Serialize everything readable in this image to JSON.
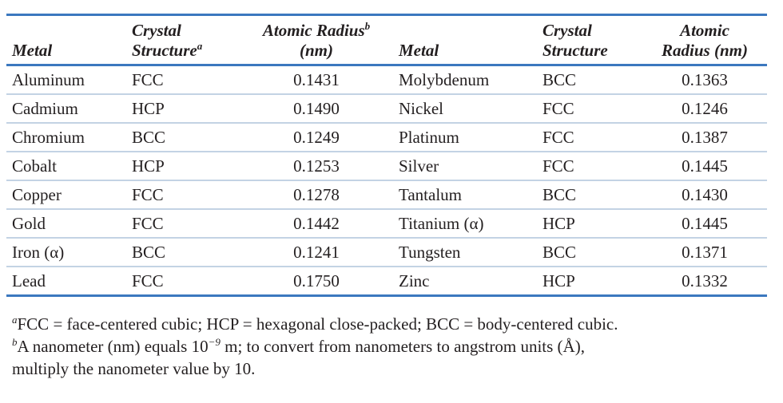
{
  "table": {
    "columns": [
      {
        "lines": [
          {
            "text": "Metal"
          }
        ],
        "align": "left"
      },
      {
        "lines": [
          {
            "text": "Crystal"
          },
          {
            "text": "Structure",
            "sup": "a"
          }
        ],
        "align": "left"
      },
      {
        "lines": [
          {
            "text": "Atomic Radius",
            "sup": "b"
          },
          {
            "text": "(nm)"
          }
        ],
        "align": "center"
      },
      {
        "lines": [
          {
            "text": "Metal"
          }
        ],
        "align": "left"
      },
      {
        "lines": [
          {
            "text": "Crystal"
          },
          {
            "text": "Structure"
          }
        ],
        "align": "left"
      },
      {
        "lines": [
          {
            "text": "Atomic"
          },
          {
            "text": "Radius (nm)"
          }
        ],
        "align": "center"
      }
    ],
    "rows": [
      [
        "Aluminum",
        "FCC",
        "0.1431",
        "Molybdenum",
        "BCC",
        "0.1363"
      ],
      [
        "Cadmium",
        "HCP",
        "0.1490",
        "Nickel",
        "FCC",
        "0.1246"
      ],
      [
        "Chromium",
        "BCC",
        "0.1249",
        "Platinum",
        "FCC",
        "0.1387"
      ],
      [
        "Cobalt",
        "HCP",
        "0.1253",
        "Silver",
        "FCC",
        "0.1445"
      ],
      [
        "Copper",
        "FCC",
        "0.1278",
        "Tantalum",
        "BCC",
        "0.1430"
      ],
      [
        "Gold",
        "FCC",
        "0.1442",
        "Titanium (α)",
        "HCP",
        "0.1445"
      ],
      [
        "Iron (α)",
        "BCC",
        "0.1241",
        "Tungsten",
        "BCC",
        "0.1371"
      ],
      [
        "Lead",
        "FCC",
        "0.1750",
        "Zinc",
        "HCP",
        "0.1332"
      ]
    ]
  },
  "footnotes": [
    {
      "mark": "a",
      "lines": [
        [
          {
            "text": "FCC = face-centered cubic; HCP = hexagonal close-packed; BCC = body-centered cubic."
          }
        ]
      ]
    },
    {
      "mark": "b",
      "lines": [
        [
          {
            "text": "A nanometer (nm) equals 10"
          },
          {
            "sup": "−9"
          },
          {
            "text": " m; to convert from nanometers to angstrom units (Å),"
          }
        ],
        [
          {
            "text": "multiply the nanometer value by 10."
          }
        ]
      ]
    }
  ]
}
